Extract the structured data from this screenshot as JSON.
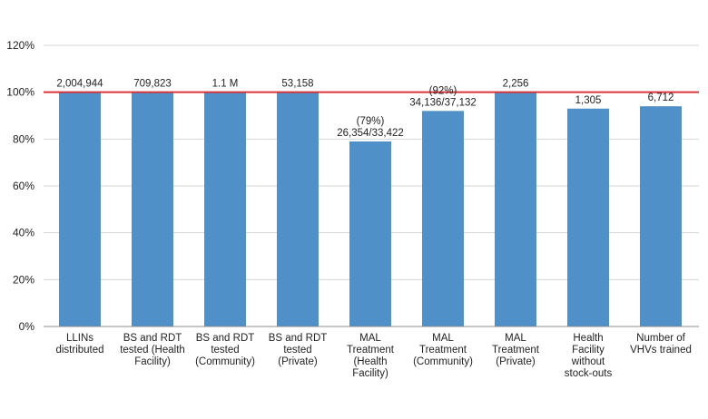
{
  "chart_data": {
    "type": "bar",
    "y_ticks": [
      "0%",
      "20%",
      "40%",
      "60%",
      "80%",
      "100%",
      "120%"
    ],
    "ylim": [
      0,
      120
    ],
    "grid": true,
    "colors": {
      "bar": "#4f90c8",
      "target_line": "#d9343a",
      "grid": "#d4d4d4",
      "axis": "#8c8c8c"
    },
    "target_value": 100,
    "bars": [
      {
        "category": [
          "LLINs",
          "distributed"
        ],
        "value": 100,
        "label": [
          "2,004,944"
        ]
      },
      {
        "category": [
          "BS and RDT",
          "tested (Health",
          "Facility)"
        ],
        "value": 100,
        "label": [
          "709,823"
        ]
      },
      {
        "category": [
          "BS and RDT",
          "tested",
          "(Community)"
        ],
        "value": 100,
        "label": [
          "1.1 M"
        ]
      },
      {
        "category": [
          "BS and RDT",
          "tested",
          "(Private)"
        ],
        "value": 100,
        "label": [
          "53,158"
        ]
      },
      {
        "category": [
          "MAL",
          "Treatment",
          "(Health",
          "Facility)"
        ],
        "value": 79,
        "label": [
          "(79%)",
          "26,354/33,422"
        ]
      },
      {
        "category": [
          "MAL",
          "Treatment",
          "(Community)"
        ],
        "value": 92,
        "label": [
          "(92%)",
          "34,136/37,132"
        ]
      },
      {
        "category": [
          "MAL",
          "Treatment",
          "(Private)"
        ],
        "value": 100,
        "label": [
          "2,256"
        ]
      },
      {
        "category": [
          "Health",
          "Facility",
          "without",
          "stock-outs"
        ],
        "value": 93,
        "label": [
          "1,305"
        ]
      },
      {
        "category": [
          "Number of",
          "VHVs trained"
        ],
        "value": 94,
        "label": [
          "6,712"
        ]
      }
    ]
  }
}
